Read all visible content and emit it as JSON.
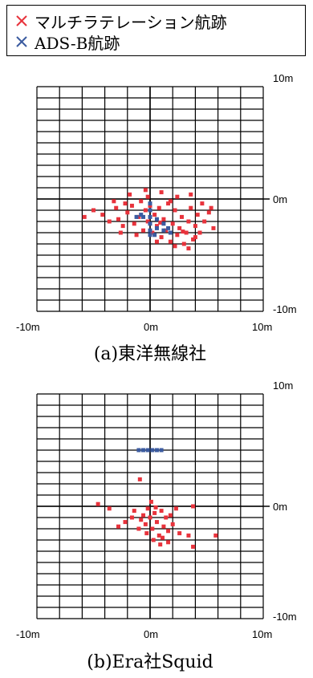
{
  "legend": {
    "items": [
      {
        "label": "マルチラテレーション航跡",
        "color": "#e8333c"
      },
      {
        "label": "ADS-B航跡",
        "color": "#3b5ba0"
      }
    ]
  },
  "chart_data": [
    {
      "type": "scatter",
      "title": "",
      "caption": "(a)東洋無線社",
      "xlim": [
        -10,
        10
      ],
      "ylim": [
        -10,
        10
      ],
      "x_tick_labels": [
        "-10m",
        "0m",
        "10m"
      ],
      "y_tick_labels": [
        "10m",
        "0m",
        "-10m"
      ],
      "grid": true,
      "series": [
        {
          "name": "マルチラテレーション航跡",
          "color": "#e8333c",
          "points": [
            [
              -5.8,
              -1.6
            ],
            [
              -5.0,
              -1.0
            ],
            [
              -4.2,
              -1.4
            ],
            [
              -3.6,
              -2.0
            ],
            [
              -3.0,
              -0.8
            ],
            [
              -2.8,
              -1.8
            ],
            [
              -2.4,
              -2.4
            ],
            [
              -2.0,
              -1.2
            ],
            [
              -1.6,
              -0.6
            ],
            [
              -1.4,
              -2.2
            ],
            [
              -1.0,
              -1.6
            ],
            [
              -0.8,
              -0.2
            ],
            [
              -0.6,
              -2.8
            ],
            [
              -0.4,
              -1.0
            ],
            [
              -0.2,
              -2.0
            ],
            [
              0.0,
              -0.6
            ],
            [
              0.2,
              -3.0
            ],
            [
              0.4,
              -1.4
            ],
            [
              0.6,
              -2.4
            ],
            [
              0.8,
              -0.8
            ],
            [
              1.0,
              -3.4
            ],
            [
              1.2,
              -1.8
            ],
            [
              1.4,
              -2.8
            ],
            [
              1.6,
              -0.4
            ],
            [
              1.8,
              -3.8
            ],
            [
              2.0,
              -2.2
            ],
            [
              2.2,
              -1.0
            ],
            [
              2.4,
              -3.2
            ],
            [
              2.6,
              -2.6
            ],
            [
              2.8,
              -1.6
            ],
            [
              3.0,
              -4.0
            ],
            [
              3.2,
              -3.0
            ],
            [
              3.4,
              -2.0
            ],
            [
              3.6,
              -0.8
            ],
            [
              3.8,
              -3.6
            ],
            [
              4.0,
              -2.4
            ],
            [
              4.2,
              -1.4
            ],
            [
              4.4,
              -3.0
            ],
            [
              4.8,
              -2.0
            ],
            [
              5.2,
              -1.2
            ],
            [
              5.6,
              -2.6
            ],
            [
              -3.2,
              -0.2
            ],
            [
              -1.8,
              0.4
            ],
            [
              -0.4,
              0.8
            ],
            [
              1.0,
              0.6
            ],
            [
              2.4,
              0.2
            ],
            [
              3.6,
              0.4
            ],
            [
              4.6,
              -0.4
            ],
            [
              5.4,
              -0.8
            ],
            [
              -2.6,
              -3.0
            ],
            [
              -1.2,
              -3.2
            ],
            [
              0.6,
              -3.8
            ],
            [
              2.2,
              -4.2
            ],
            [
              3.4,
              -4.4
            ],
            [
              -0.2,
              0.2
            ],
            [
              1.8,
              -0.2
            ],
            [
              2.9,
              -2.9
            ],
            [
              -2.2,
              -0.4
            ],
            [
              0.9,
              -2.1
            ],
            [
              4.0,
              -3.4
            ]
          ]
        },
        {
          "name": "ADS-B航跡",
          "color": "#3b5ba0",
          "points": [
            [
              -1.2,
              -1.6
            ],
            [
              -0.6,
              -1.6
            ],
            [
              0.0,
              -1.6
            ],
            [
              0.0,
              -1.0
            ],
            [
              0.0,
              -0.4
            ],
            [
              0.0,
              -2.2
            ],
            [
              0.0,
              -2.8
            ],
            [
              0.0,
              -3.2
            ],
            [
              0.6,
              -2.6
            ],
            [
              1.2,
              -2.8
            ],
            [
              1.8,
              -3.0
            ],
            [
              0.4,
              -3.2
            ],
            [
              -0.8,
              -1.4
            ],
            [
              0.6,
              -1.8
            ],
            [
              1.2,
              -2.2
            ],
            [
              1.6,
              -2.6
            ]
          ]
        }
      ]
    },
    {
      "type": "scatter",
      "title": "",
      "caption": "(b)Era社Squid",
      "xlim": [
        -10,
        10
      ],
      "ylim": [
        -10,
        10
      ],
      "x_tick_labels": [
        "-10m",
        "0m",
        "10m"
      ],
      "y_tick_labels": [
        "10m",
        "0m",
        "-10m"
      ],
      "grid": true,
      "series": [
        {
          "name": "マルチラテレーション航跡",
          "color": "#e8333c",
          "points": [
            [
              -4.6,
              0.2
            ],
            [
              -3.6,
              -0.2
            ],
            [
              -2.8,
              -1.8
            ],
            [
              -2.2,
              -1.4
            ],
            [
              -1.4,
              -0.4
            ],
            [
              -0.9,
              2.4
            ],
            [
              -0.6,
              -0.8
            ],
            [
              -0.4,
              -1.6
            ],
            [
              -0.2,
              -0.2
            ],
            [
              0.0,
              -1.0
            ],
            [
              0.2,
              -2.0
            ],
            [
              0.4,
              -0.6
            ],
            [
              0.6,
              -1.4
            ],
            [
              0.8,
              -2.6
            ],
            [
              1.0,
              -0.4
            ],
            [
              1.2,
              -1.8
            ],
            [
              1.4,
              -1.0
            ],
            [
              1.6,
              -2.2
            ],
            [
              1.8,
              -0.8
            ],
            [
              2.0,
              -1.6
            ],
            [
              -0.8,
              -1.2
            ],
            [
              -1.0,
              -2.0
            ],
            [
              0.1,
              0.4
            ],
            [
              0.3,
              -3.0
            ],
            [
              0.9,
              -3.4
            ],
            [
              1.6,
              -3.2
            ],
            [
              2.6,
              -2.4
            ],
            [
              3.4,
              -2.6
            ],
            [
              3.8,
              0.0
            ],
            [
              3.8,
              -3.6
            ],
            [
              5.8,
              -2.6
            ],
            [
              -0.3,
              -2.4
            ],
            [
              1.1,
              -2.8
            ],
            [
              -1.6,
              -1.0
            ],
            [
              2.3,
              -0.2
            ],
            [
              0.5,
              -0.1
            ]
          ]
        },
        {
          "name": "ADS-B航跡",
          "color": "#3b5ba0",
          "points": [
            [
              -1.0,
              5.0
            ],
            [
              -0.6,
              5.0
            ],
            [
              -0.2,
              5.0
            ],
            [
              0.2,
              5.0
            ],
            [
              0.6,
              5.0
            ],
            [
              1.0,
              5.0
            ]
          ]
        }
      ]
    }
  ]
}
